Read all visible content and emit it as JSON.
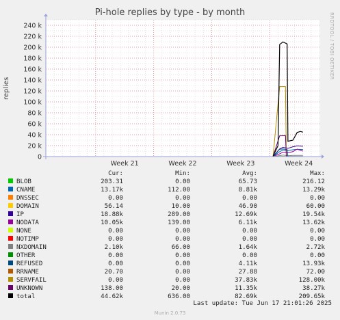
{
  "side_label": "RRDTOOL / TOBI OETIKER",
  "footer": {
    "last_update": "Last update: Tue Jun 17 21:01:26 2025",
    "version": "Munin 2.0.73"
  },
  "colors": {
    "background": "#f0f0f0",
    "plot_background": "#ffffff",
    "major_grid": "#e09090",
    "minor_grid": "#e0e0e0"
  },
  "chart_data": {
    "type": "line",
    "title": "Pi-hole replies by type - by month",
    "xlabel": "",
    "ylabel": "replies",
    "x_ticks": [
      "Week 21",
      "Week 22",
      "Week 23",
      "Week 24"
    ],
    "y_ticks": [
      "0",
      "20 k",
      "40 k",
      "60 k",
      "80 k",
      "100 k",
      "120 k",
      "140 k",
      "160 k",
      "180 k",
      "200 k",
      "220 k",
      "240 k"
    ],
    "ylim": [
      0,
      250000
    ],
    "grid": true,
    "x_unit": "days",
    "xlim": [
      0,
      33
    ],
    "legend_headers": [
      "Cur:",
      "Min:",
      "Avg:",
      "Max:"
    ],
    "series": [
      {
        "name": "BLOB",
        "color": "#00cc00",
        "cur": "203.31",
        "min": "0.00",
        "avg": "65.73",
        "max": "216.12",
        "points": [
          [
            27.4,
            0
          ],
          [
            28.2,
            150
          ],
          [
            28.6,
            210
          ],
          [
            29.2,
            180
          ],
          [
            29.8,
            200
          ],
          [
            30.5,
            180
          ],
          [
            31.0,
            200
          ]
        ]
      },
      {
        "name": "CNAME",
        "color": "#0066b3",
        "cur": "13.17k",
        "min": "112.00",
        "avg": "8.81k",
        "max": "13.29k",
        "points": [
          [
            27.4,
            300
          ],
          [
            28.2,
            9000
          ],
          [
            28.6,
            12000
          ],
          [
            29.2,
            11000
          ],
          [
            29.8,
            12500
          ],
          [
            30.3,
            13200
          ],
          [
            31.0,
            13170
          ]
        ]
      },
      {
        "name": "DNSSEC",
        "color": "#ff8000",
        "cur": "0.00",
        "min": "0.00",
        "avg": "0.00",
        "max": "0.00",
        "points": [
          [
            27.4,
            0
          ],
          [
            31.0,
            0
          ]
        ]
      },
      {
        "name": "DOMAIN",
        "color": "#ffcc00",
        "cur": "56.14",
        "min": "10.00",
        "avg": "46.90",
        "max": "60.00",
        "points": [
          [
            27.4,
            10
          ],
          [
            28.6,
            50
          ],
          [
            29.8,
            55
          ],
          [
            31.0,
            56
          ]
        ]
      },
      {
        "name": "IP",
        "color": "#330099",
        "cur": "18.88k",
        "min": "289.00",
        "avg": "12.69k",
        "max": "19.54k",
        "points": [
          [
            27.4,
            500
          ],
          [
            28.2,
            14000
          ],
          [
            28.6,
            17000
          ],
          [
            29.2,
            15000
          ],
          [
            29.8,
            18000
          ],
          [
            30.3,
            19500
          ],
          [
            31.0,
            18880
          ]
        ]
      },
      {
        "name": "NODATA",
        "color": "#990099",
        "cur": "10.05k",
        "min": "139.00",
        "avg": "6.11k",
        "max": "13.62k",
        "points": [
          [
            27.4,
            300
          ],
          [
            28.2,
            5000
          ],
          [
            28.6,
            8000
          ],
          [
            29.2,
            7000
          ],
          [
            29.8,
            9000
          ],
          [
            30.3,
            13600
          ],
          [
            31.0,
            10050
          ]
        ]
      },
      {
        "name": "NONE",
        "color": "#ccff00",
        "cur": "0.00",
        "min": "0.00",
        "avg": "0.00",
        "max": "0.00",
        "points": [
          [
            27.4,
            0
          ],
          [
            31.0,
            0
          ]
        ]
      },
      {
        "name": "NOTIMP",
        "color": "#ff0000",
        "cur": "0.00",
        "min": "0.00",
        "avg": "0.00",
        "max": "0.00",
        "points": [
          [
            27.4,
            0
          ],
          [
            31.0,
            0
          ]
        ]
      },
      {
        "name": "NXDOMAIN",
        "color": "#808080",
        "cur": "2.10k",
        "min": "66.00",
        "avg": "1.64k",
        "max": "2.72k",
        "points": [
          [
            27.4,
            100
          ],
          [
            28.2,
            1800
          ],
          [
            28.6,
            2700
          ],
          [
            29.2,
            1500
          ],
          [
            29.8,
            2300
          ],
          [
            31.0,
            2100
          ]
        ]
      },
      {
        "name": "OTHER",
        "color": "#008f00",
        "cur": "0.00",
        "min": "0.00",
        "avg": "0.00",
        "max": "0.00",
        "points": [
          [
            27.4,
            0
          ],
          [
            31.0,
            0
          ]
        ]
      },
      {
        "name": "REFUSED",
        "color": "#00487d",
        "cur": "0.00",
        "min": "0.00",
        "avg": "4.11k",
        "max": "13.93k",
        "points": [
          [
            27.4,
            0
          ],
          [
            28.2,
            13500
          ],
          [
            28.6,
            13930
          ],
          [
            29.1,
            13000
          ],
          [
            29.2,
            0
          ],
          [
            31.0,
            0
          ]
        ]
      },
      {
        "name": "RRNAME",
        "color": "#b35a00",
        "cur": "20.70",
        "min": "0.00",
        "avg": "27.88",
        "max": "72.00",
        "points": [
          [
            27.4,
            0
          ],
          [
            28.6,
            70
          ],
          [
            29.8,
            30
          ],
          [
            31.0,
            21
          ]
        ]
      },
      {
        "name": "SERVFAIL",
        "color": "#b38f00",
        "cur": "0.00",
        "min": "0.00",
        "avg": "37.83k",
        "max": "128.00k",
        "points": [
          [
            27.4,
            0
          ],
          [
            28.2,
            128000
          ],
          [
            28.9,
            128000
          ],
          [
            29.0,
            0
          ],
          [
            31.0,
            0
          ]
        ]
      },
      {
        "name": "UNKNOWN",
        "color": "#6b006b",
        "cur": "138.00",
        "min": "20.00",
        "avg": "11.35k",
        "max": "38.27k",
        "points": [
          [
            27.4,
            20
          ],
          [
            28.2,
            38000
          ],
          [
            28.9,
            38270
          ],
          [
            29.0,
            200
          ],
          [
            31.0,
            138
          ]
        ]
      },
      {
        "name": "total",
        "color": "#000000",
        "cur": "44.62k",
        "min": "636.00",
        "avg": "82.69k",
        "max": "209.65k",
        "points": [
          [
            27.4,
            636
          ],
          [
            28.0,
            20000
          ],
          [
            28.2,
            205000
          ],
          [
            28.6,
            209650
          ],
          [
            29.1,
            206000
          ],
          [
            29.2,
            28000
          ],
          [
            29.8,
            30000
          ],
          [
            30.3,
            44000
          ],
          [
            30.7,
            46000
          ],
          [
            31.0,
            44620
          ]
        ]
      }
    ]
  }
}
